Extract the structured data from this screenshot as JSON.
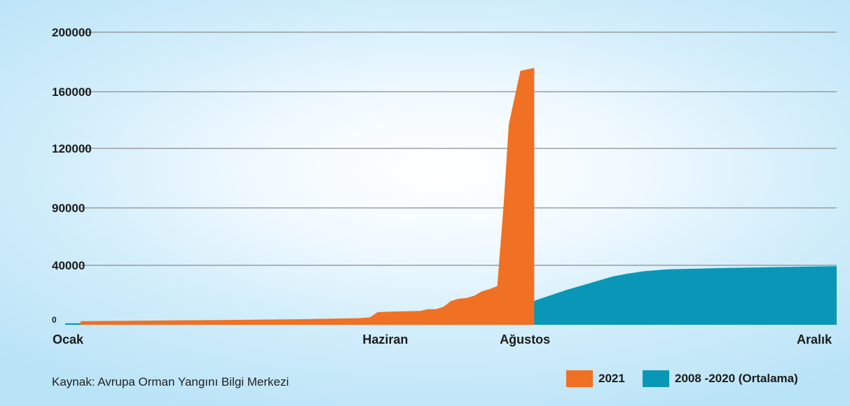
{
  "chart_data": {
    "type": "area",
    "ylim": [
      0,
      200000
    ],
    "y_ticks": [
      {
        "value": 0,
        "label": "0"
      },
      {
        "value": 40000,
        "label": "40000"
      },
      {
        "value": 90000,
        "label": "90000"
      },
      {
        "value": 120000,
        "label": "120000"
      },
      {
        "value": 160000,
        "label": "160000"
      },
      {
        "value": 200000,
        "label": "200000"
      }
    ],
    "x_domain": [
      0,
      100
    ],
    "x_ticks": [
      {
        "value": 0,
        "label": "Ocak"
      },
      {
        "value": 41.5,
        "label": "Haziran"
      },
      {
        "value": 59.6,
        "label": "Ağustos"
      },
      {
        "value": 100,
        "label": "Aralık"
      }
    ],
    "grid": true,
    "series": [
      {
        "name": "2008 -2020 (Ortalama)",
        "color": "#0a97b7",
        "points": [
          [
            0,
            1000
          ],
          [
            10,
            1200
          ],
          [
            20,
            1400
          ],
          [
            30,
            1600
          ],
          [
            38,
            1800
          ],
          [
            42,
            2000
          ],
          [
            47,
            2600
          ],
          [
            50,
            4500
          ],
          [
            53,
            6500
          ],
          [
            56,
            8500
          ],
          [
            58,
            10000
          ],
          [
            59.5,
            12000
          ],
          [
            61,
            16500
          ],
          [
            63,
            20000
          ],
          [
            65,
            23500
          ],
          [
            67,
            26500
          ],
          [
            69,
            29500
          ],
          [
            71,
            32500
          ],
          [
            73,
            34500
          ],
          [
            75,
            36000
          ],
          [
            78,
            37300
          ],
          [
            82,
            37800
          ],
          [
            86,
            38200
          ],
          [
            90,
            38600
          ],
          [
            95,
            39000
          ],
          [
            100,
            39400
          ]
        ]
      },
      {
        "name": "2021",
        "color": "#f07024",
        "points": [
          [
            2,
            2400
          ],
          [
            10,
            2800
          ],
          [
            20,
            3200
          ],
          [
            30,
            3700
          ],
          [
            38,
            4400
          ],
          [
            39.5,
            5000
          ],
          [
            40.5,
            8500
          ],
          [
            43,
            9000
          ],
          [
            46,
            9300
          ],
          [
            47,
            10500
          ],
          [
            48,
            10500
          ],
          [
            49,
            12000
          ],
          [
            50,
            16000
          ],
          [
            51,
            17500
          ],
          [
            52,
            18000
          ],
          [
            53,
            19500
          ],
          [
            54,
            22500
          ],
          [
            55,
            24000
          ],
          [
            56,
            26000
          ],
          [
            56.8,
            90000
          ],
          [
            57.5,
            137000
          ],
          [
            59,
            174000
          ],
          [
            60.8,
            176000
          ],
          [
            60.8,
            19000
          ]
        ]
      }
    ]
  },
  "source": "Kaynak: Avrupa Orman Yangını Bilgi Merkezi"
}
